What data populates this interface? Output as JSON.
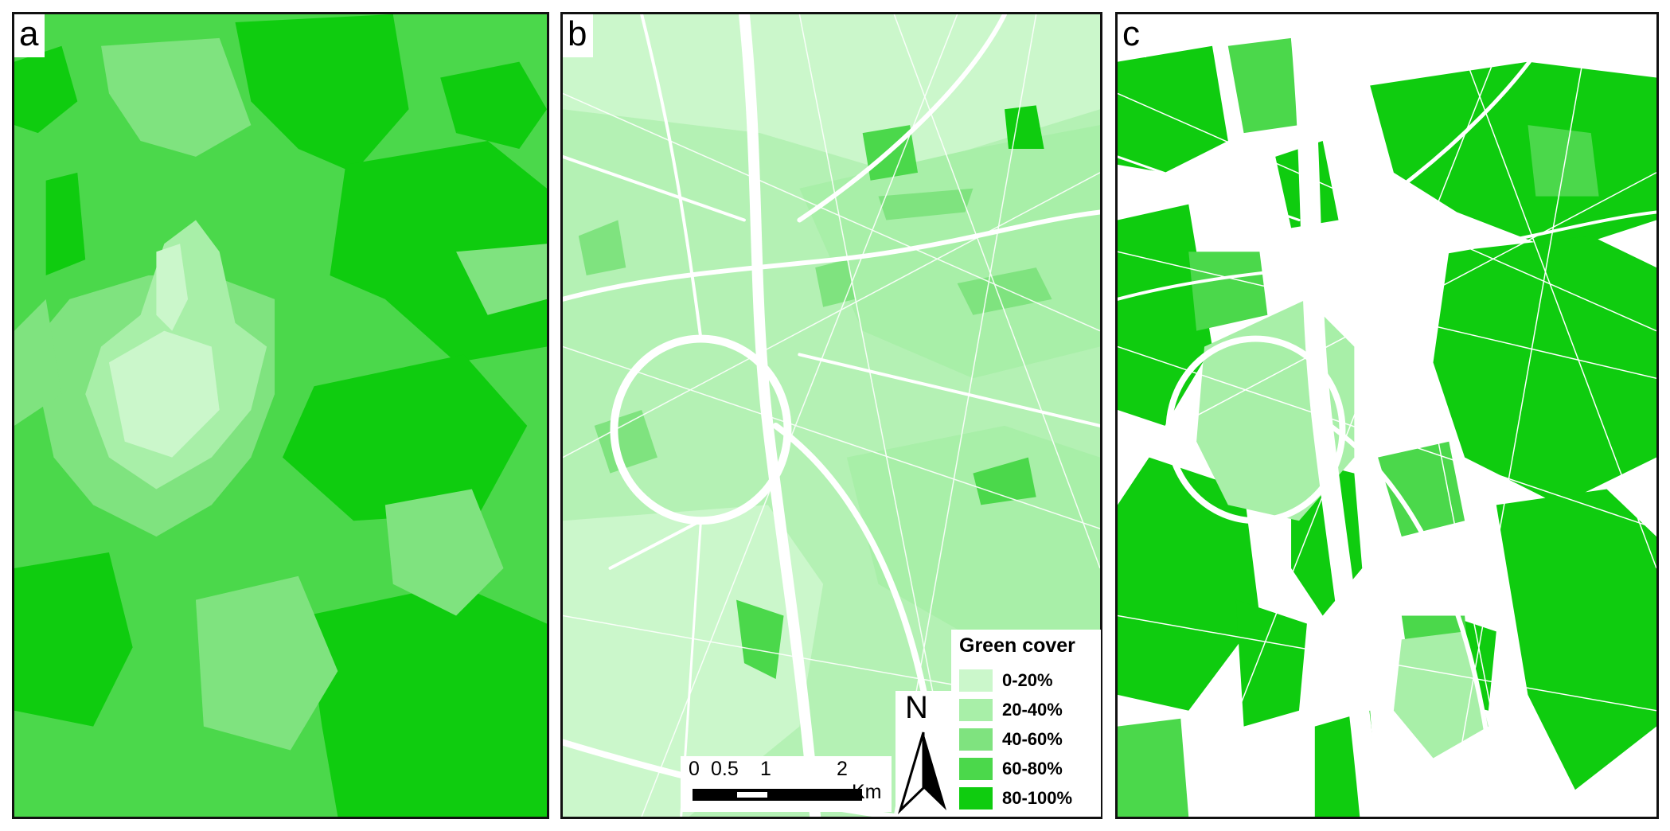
{
  "panels": {
    "a": {
      "label": "a"
    },
    "b": {
      "label": "b"
    },
    "c": {
      "label": "c"
    }
  },
  "legend": {
    "title": "Green cover",
    "items": [
      {
        "label": "0-20%",
        "color": "#cbf7cb"
      },
      {
        "label": "20-40%",
        "color": "#a8efa8"
      },
      {
        "label": "40-60%",
        "color": "#7fe37f"
      },
      {
        "label": "60-80%",
        "color": "#4bd84b"
      },
      {
        "label": "80-100%",
        "color": "#0fcc0f"
      }
    ]
  },
  "scalebar": {
    "ticks": [
      "0",
      "0.5",
      "1",
      "2"
    ],
    "unit": "Km"
  },
  "north_arrow": {
    "label": "N"
  },
  "colors": {
    "border": "#111111",
    "road": "#ffffff",
    "green_dark": "#0fcc0f",
    "green_mid": "#4bd84b",
    "green_light": "#cbf7cb"
  }
}
